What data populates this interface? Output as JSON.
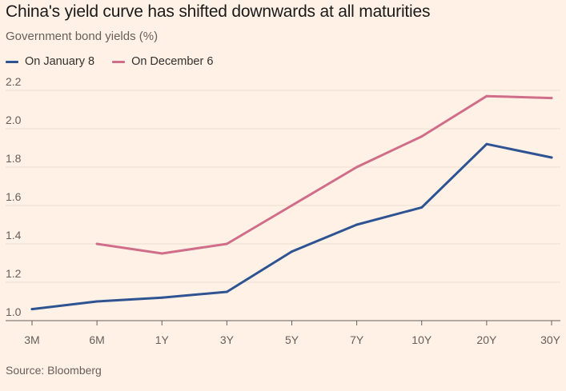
{
  "chart_data": {
    "type": "line",
    "title": "China's yield curve has shifted downwards at all maturities",
    "subtitle": "Government bond yields (%)",
    "source": "Source: Bloomberg",
    "categories": [
      "3M",
      "6M",
      "1Y",
      "3Y",
      "5Y",
      "7Y",
      "10Y",
      "20Y",
      "30Y"
    ],
    "ylim": [
      1.0,
      2.2
    ],
    "yticks": [
      "1.0",
      "1.2",
      "1.4",
      "1.6",
      "1.8",
      "2.0",
      "2.2"
    ],
    "grid": true,
    "legend_position": "top-left",
    "series": [
      {
        "name": "On January 8",
        "color": "#2E5393",
        "values": [
          1.06,
          1.1,
          1.12,
          1.15,
          1.36,
          1.5,
          1.59,
          1.92,
          1.85
        ]
      },
      {
        "name": "On December 6",
        "color": "#D06E8A",
        "values": [
          null,
          1.4,
          1.35,
          1.4,
          1.6,
          1.8,
          1.96,
          2.17,
          2.16
        ]
      }
    ]
  }
}
